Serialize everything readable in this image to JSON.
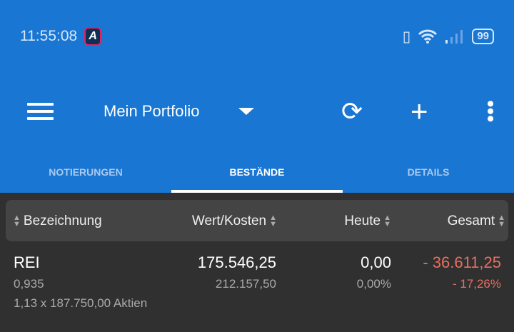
{
  "status": {
    "time": "11:55:08",
    "app_icon_letter": "A",
    "battery": "99",
    "icons": [
      "vibrate-icon",
      "wifi-icon",
      "signal-icon",
      "battery-icon"
    ]
  },
  "toolbar": {
    "title": "Mein Portfolio"
  },
  "tabs": [
    {
      "label": "NOTIERUNGEN"
    },
    {
      "label": "BESTÄNDE",
      "active": true
    },
    {
      "label": "DETAILS"
    }
  ],
  "table": {
    "headers": [
      "Bezeichnung",
      "Wert/Kosten",
      "Heute",
      "Gesamt"
    ],
    "rows": [
      {
        "name": "REI",
        "price": "0,935",
        "shares": "1,13 x 187.750,00 Aktien",
        "value": "175.546,25",
        "cost": "212.157,50",
        "today": "0,00",
        "today_pct": "0,00%",
        "total": "- 36.611,25",
        "total_pct": "- 17,26%"
      }
    ]
  },
  "colors": {
    "primary": "#1976d2",
    "negative": "#e57060",
    "background": "#303030"
  }
}
